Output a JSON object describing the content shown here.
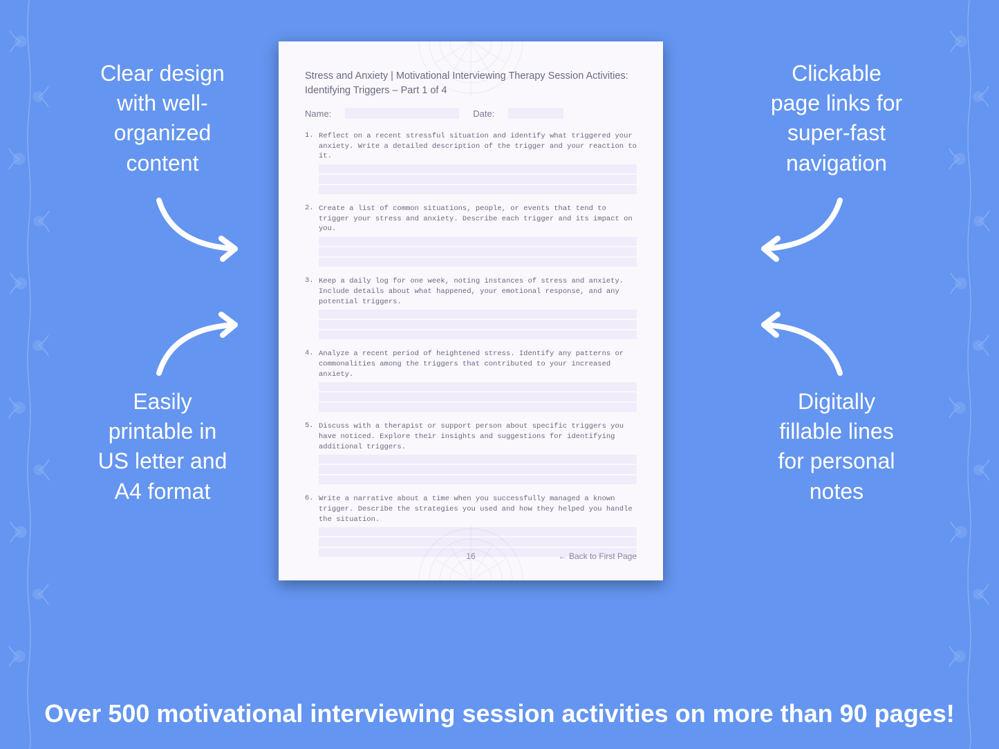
{
  "background_color": "#6495f0",
  "page_bg": "#faf8fd",
  "fill_line_color": "#f0ecfa",
  "text_color_page": "#6b6880",
  "text_color_white": "#ffffff",
  "callouts": {
    "top_left": "Clear design\nwith well-\norganized\ncontent",
    "top_right": "Clickable\npage links for\nsuper-fast\nnavigation",
    "bottom_left": "Easily\nprintable in\nUS letter and\nA4 format",
    "bottom_right": "Digitally\nfillable lines\nfor personal\nnotes"
  },
  "bottom_banner": "Over 500 motivational interviewing session activities on more than 90 pages!",
  "page": {
    "title": "Stress and Anxiety | Motivational Interviewing Therapy Session Activities: Identifying Triggers – Part 1 of 4",
    "name_label": "Name:",
    "date_label": "Date:",
    "page_number": "16",
    "back_link": "← Back to First Page",
    "questions": [
      {
        "num": "1.",
        "text": "Reflect on a recent stressful situation and identify what triggered your anxiety. Write a detailed description of the trigger and your reaction to it."
      },
      {
        "num": "2.",
        "text": "Create a list of common situations, people, or events that tend to trigger your stress and anxiety. Describe each trigger and its impact on you."
      },
      {
        "num": "3.",
        "text": "Keep a daily log for one week, noting instances of stress and anxiety. Include details about what happened, your emotional response, and any potential triggers."
      },
      {
        "num": "4.",
        "text": "Analyze a recent period of heightened stress. Identify any patterns or commonalities among the triggers that contributed to your increased anxiety."
      },
      {
        "num": "5.",
        "text": "Discuss with a therapist or support person about specific triggers you have noticed. Explore their insights and suggestions for identifying additional triggers."
      },
      {
        "num": "6.",
        "text": "Write a narrative about a time when you successfully managed a known trigger. Describe the strategies you used and how they helped you handle the situation."
      }
    ]
  }
}
